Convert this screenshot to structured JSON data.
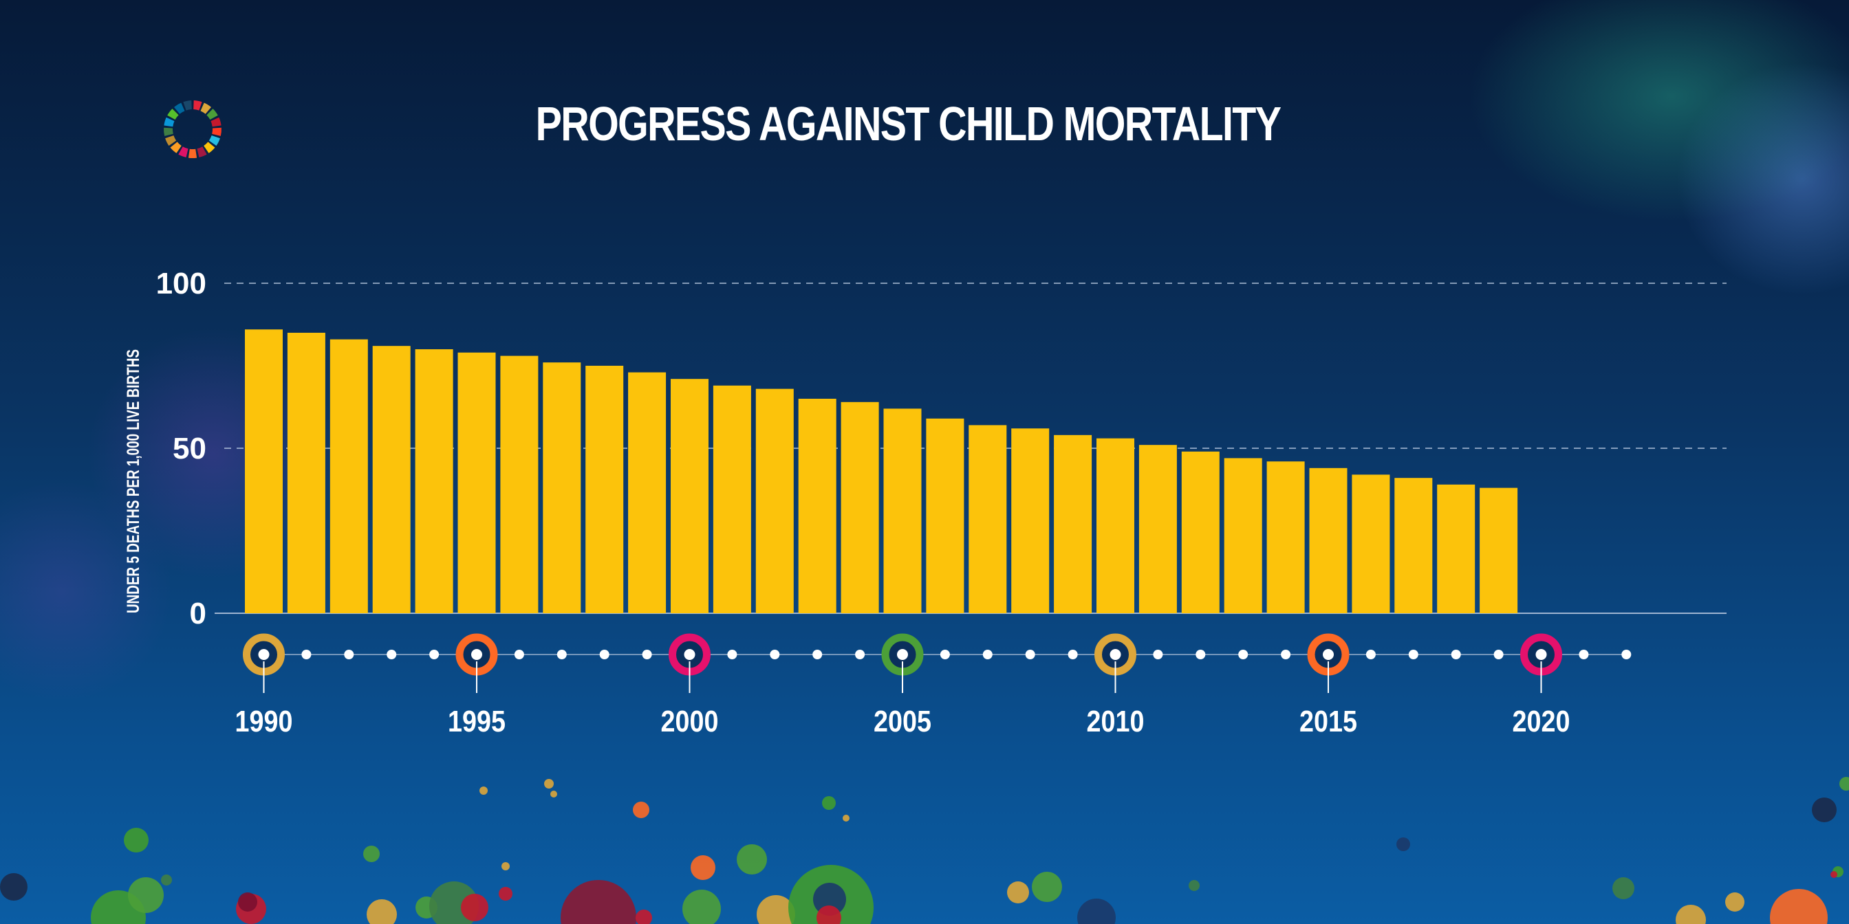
{
  "chart_data": {
    "type": "bar",
    "title": "PROGRESS AGAINST CHILD MORTALITY",
    "ylabel": "UNDER 5 DEATHS PER 1,000 LIVE BIRTHS",
    "xlabel": "",
    "ylim": [
      0,
      100
    ],
    "yticks": [
      "0",
      "50",
      "100"
    ],
    "grid": "dashed horizontal at 50 and 100",
    "categories": [
      "1990",
      "1991",
      "1992",
      "1993",
      "1994",
      "1995",
      "1996",
      "1997",
      "1998",
      "1999",
      "2000",
      "2001",
      "2002",
      "2003",
      "2004",
      "2005",
      "2006",
      "2007",
      "2008",
      "2009",
      "2010",
      "2011",
      "2012",
      "2013",
      "2014",
      "2015",
      "2016",
      "2017",
      "2018",
      "2019"
    ],
    "values": [
      86,
      85,
      83,
      81,
      80,
      79,
      78,
      76,
      75,
      73,
      71,
      69,
      68,
      65,
      64,
      62,
      59,
      57,
      56,
      54,
      53,
      51,
      49,
      47,
      46,
      44,
      42,
      41,
      39,
      38
    ],
    "bar_color": "#fcc30b",
    "timeline": {
      "labels": [
        "1990",
        "1995",
        "2000",
        "2005",
        "2010",
        "2015",
        "2020"
      ],
      "ring_colors": [
        "#dda63a",
        "#fd6925",
        "#e5116c",
        "#4c9f38",
        "#dda63a",
        "#fd6925",
        "#e5116c"
      ],
      "end_year": "2022"
    }
  },
  "colors": {
    "text": "#ffffff",
    "grid": "#b9c9e0"
  },
  "logo": {
    "icon": "sdg-wheel-icon",
    "colors": [
      "#e5243b",
      "#dda63a",
      "#4c9f38",
      "#c5192d",
      "#ff3a21",
      "#26bde2",
      "#fcc30b",
      "#a21942",
      "#fd6925",
      "#dd1367",
      "#fd9d24",
      "#bf8b2e",
      "#3f7e44",
      "#0a97d9",
      "#56c02b",
      "#00689d",
      "#19486a"
    ]
  }
}
